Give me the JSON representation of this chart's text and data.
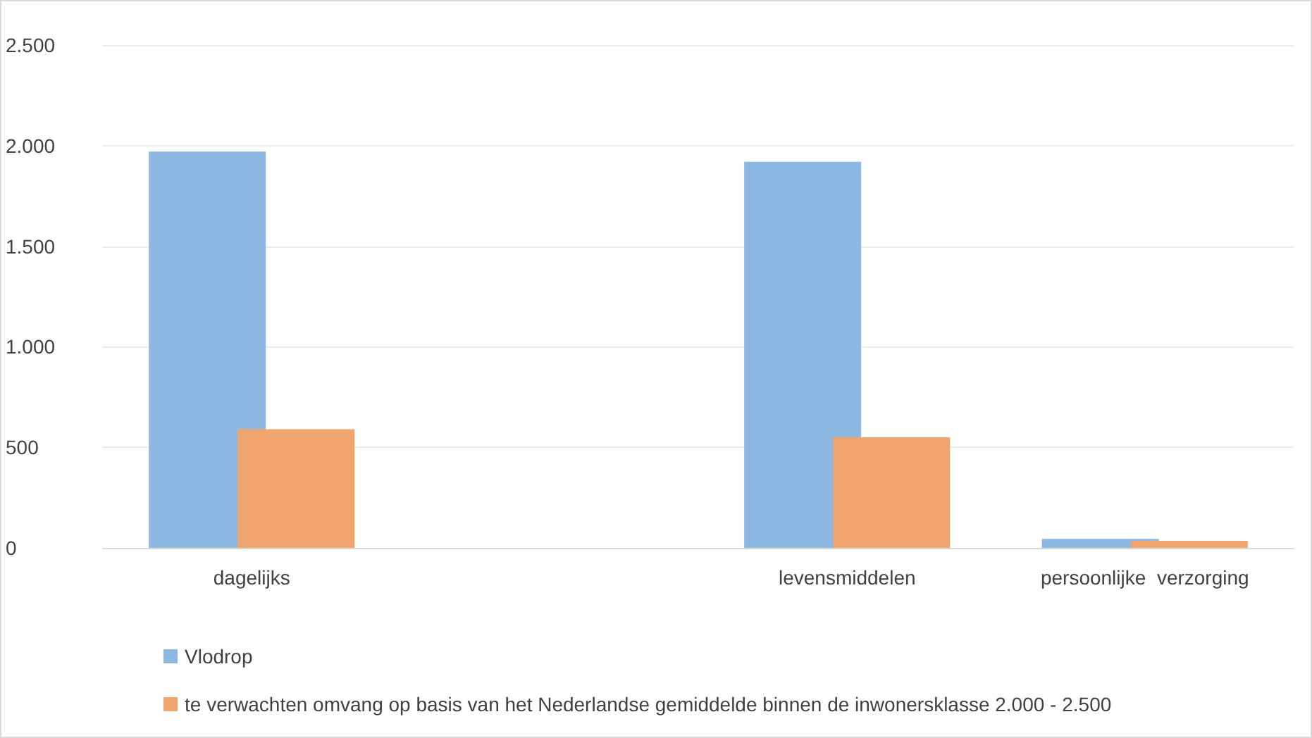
{
  "chart_data": {
    "type": "bar",
    "categories": [
      "dagelijks",
      null,
      "levensmiddelen",
      "persoonlijke  verzorging"
    ],
    "series": [
      {
        "name": "Vlodrop",
        "color": "#8cb8e2",
        "values": [
          1970,
          null,
          1920,
          45
        ]
      },
      {
        "name": "te verwachten omvang op basis van het Nederlandse gemiddelde binnen de inwonersklasse 2.000 - 2.500",
        "color": "#f0a46e",
        "values": [
          590,
          null,
          550,
          35
        ]
      }
    ],
    "ylim": [
      0,
      2500
    ],
    "yticks": [
      0,
      {
        "value": 500,
        "label": "500"
      },
      {
        "value": 1000,
        "label": "1.000"
      },
      {
        "value": 1500,
        "label": "1.500"
      },
      {
        "value": 2000,
        "label": "2.000"
      },
      {
        "value": 2500,
        "label": "2.500"
      }
    ],
    "grid": "y",
    "legend": "bottom"
  }
}
